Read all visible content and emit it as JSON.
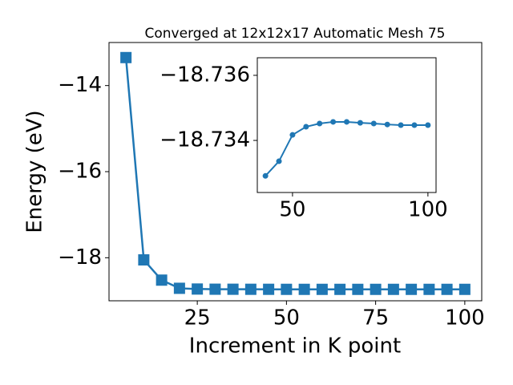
{
  "chart_data": [
    {
      "type": "line",
      "title": "Converged at 12x12x17 Automatic Mesh 75",
      "x_label": "Increment in K point",
      "y_label": "Energy (eV)",
      "x": [
        5,
        10,
        15,
        20,
        25,
        30,
        35,
        40,
        45,
        50,
        55,
        60,
        65,
        70,
        75,
        80,
        85,
        90,
        95,
        100
      ],
      "series": [
        {
          "color": "#1f77b4",
          "marker": "square",
          "values": [
            -13.35,
            -18.05,
            -18.52,
            -18.71,
            -18.727,
            -18.731,
            -18.732,
            -18.73291,
            -18.73336,
            -18.73417,
            -18.73442,
            -18.73452,
            -18.73457,
            -18.73457,
            -18.73454,
            -18.73452,
            -18.73449,
            -18.73447,
            -18.73447,
            -18.73447
          ]
        }
      ],
      "xlim": [
        0.25,
        104.75
      ],
      "ylim": [
        -19.0,
        -13.0
      ],
      "xticks": [
        25,
        50,
        75,
        100
      ],
      "yticks": [
        {
          "value": -14,
          "label": "−14"
        },
        {
          "value": -16,
          "label": "−16"
        },
        {
          "value": -18,
          "label": "−18"
        }
      ]
    },
    {
      "type": "line",
      "x": [
        40,
        45,
        50,
        55,
        60,
        65,
        70,
        75,
        80,
        85,
        90,
        95,
        100
      ],
      "series": [
        {
          "color": "#1f77b4",
          "marker": "circle",
          "values": [
            -18.73291,
            -18.73336,
            -18.73417,
            -18.73442,
            -18.73452,
            -18.73457,
            -18.73457,
            -18.73454,
            -18.73452,
            -18.73449,
            -18.73447,
            -18.73447,
            -18.73447
          ]
        }
      ],
      "xlim": [
        37,
        103
      ],
      "ylim": [
        -18.73654,
        -18.7324
      ],
      "invert_y": true,
      "xticks": [
        50,
        100
      ],
      "yticks": [
        {
          "value": -18.736,
          "label": "−18.736"
        },
        {
          "value": -18.734,
          "label": "−18.734"
        }
      ]
    }
  ]
}
